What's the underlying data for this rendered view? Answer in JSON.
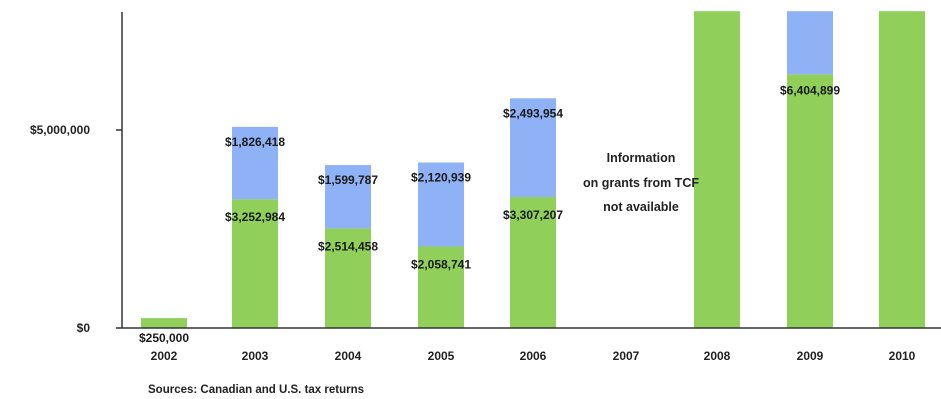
{
  "chart_data": {
    "type": "bar",
    "stacked": true,
    "categories": [
      "2002",
      "2003",
      "2004",
      "2005",
      "2006",
      "2007",
      "2008",
      "2009",
      "2010"
    ],
    "series": [
      {
        "values": [
          250000,
          3252984,
          2514458,
          2058741,
          3307207,
          null,
          null,
          6404899,
          null
        ],
        "labels": [
          "$250,000",
          "$3,252,984",
          "$2,514,458",
          "$2,058,741",
          "$3,307,207",
          "",
          "",
          "$6,404,899",
          ""
        ],
        "color": "#8fcf5a"
      },
      {
        "values": [
          null,
          1826418,
          1599787,
          2120939,
          2493954,
          null,
          null,
          null,
          null
        ],
        "labels": [
          "",
          "$1,826,418",
          "$1,599,787",
          "$2,120,939",
          "$2,493,954",
          "",
          "",
          "",
          ""
        ],
        "color": "#8fb2f7"
      }
    ],
    "ylim": [
      0,
      8000000
    ],
    "yticks": [
      {
        "value": 0,
        "label": "$0"
      },
      {
        "value": 5000000,
        "label": "$5,000,000"
      }
    ],
    "annotation": [
      "Information",
      "on grants from TCF",
      "not available"
    ],
    "source_note": "Sources: Canadian and U.S. tax returns",
    "grid": false
  }
}
